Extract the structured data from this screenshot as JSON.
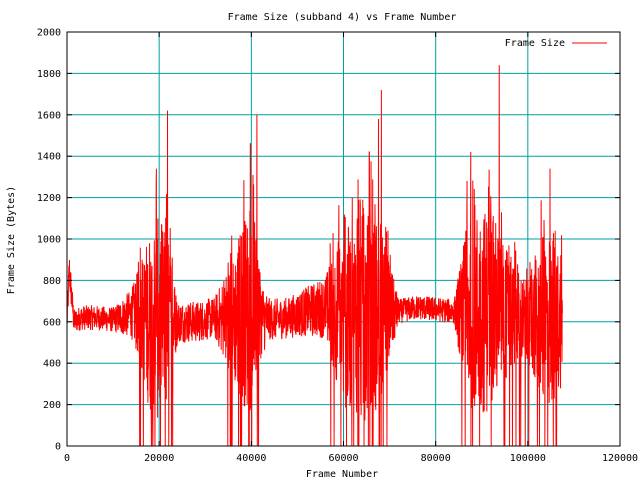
{
  "chart_data": {
    "type": "line",
    "title": "Frame Size (subband 4) vs Frame Number",
    "xlabel": "Frame Number",
    "ylabel": "Frame Size (Bytes)",
    "xlim": [
      0,
      120000
    ],
    "ylim": [
      0,
      2000
    ],
    "x_ticks": [
      0,
      20000,
      40000,
      60000,
      80000,
      100000,
      120000
    ],
    "y_ticks": [
      0,
      200,
      400,
      600,
      800,
      1000,
      1200,
      1400,
      1600,
      1800,
      2000
    ],
    "grid": true,
    "grid_color": "#00a0a0",
    "legend_position": "top-right",
    "series": [
      {
        "name": "Frame Size",
        "color": "#ff0000",
        "x_range": [
          0,
          107500
        ],
        "approximate_profile": {
          "x": [
            0,
            500,
            1500,
            3000,
            6000,
            10000,
            14000,
            16000,
            18000,
            20000,
            22000,
            24000,
            28000,
            32000,
            36000,
            38000,
            40000,
            42000,
            44000,
            48000,
            52000,
            56000,
            58000,
            60000,
            62000,
            64000,
            66000,
            68000,
            70000,
            72000,
            76000,
            80000,
            84000,
            87000,
            89000,
            91000,
            93000,
            95000,
            97000,
            100000,
            103000,
            105000,
            107500
          ],
          "center": [
            600,
            850,
            600,
            620,
            620,
            610,
            640,
            640,
            600,
            610,
            600,
            600,
            600,
            620,
            610,
            650,
            650,
            620,
            610,
            620,
            650,
            670,
            650,
            620,
            620,
            620,
            630,
            640,
            640,
            650,
            670,
            660,
            650,
            650,
            650,
            650,
            650,
            640,
            630,
            600,
            600,
            610,
            600
          ],
          "spread": [
            80,
            100,
            60,
            60,
            60,
            60,
            120,
            250,
            450,
            500,
            400,
            100,
            100,
            100,
            300,
            450,
            500,
            200,
            100,
            100,
            120,
            150,
            300,
            450,
            450,
            500,
            500,
            450,
            250,
            60,
            60,
            60,
            60,
            450,
            500,
            500,
            450,
            350,
            250,
            200,
            400,
            450,
            300
          ]
        },
        "notable_peaks": [
          {
            "x": 93800,
            "y": 1840
          },
          {
            "x": 68200,
            "y": 1720
          },
          {
            "x": 21800,
            "y": 1620
          },
          {
            "x": 41200,
            "y": 1600
          },
          {
            "x": 67600,
            "y": 1580
          },
          {
            "x": 39800,
            "y": 1460
          },
          {
            "x": 65600,
            "y": 1420
          },
          {
            "x": 19400,
            "y": 1340
          },
          {
            "x": 104800,
            "y": 1340
          },
          {
            "x": 87600,
            "y": 1420
          }
        ]
      }
    ]
  }
}
